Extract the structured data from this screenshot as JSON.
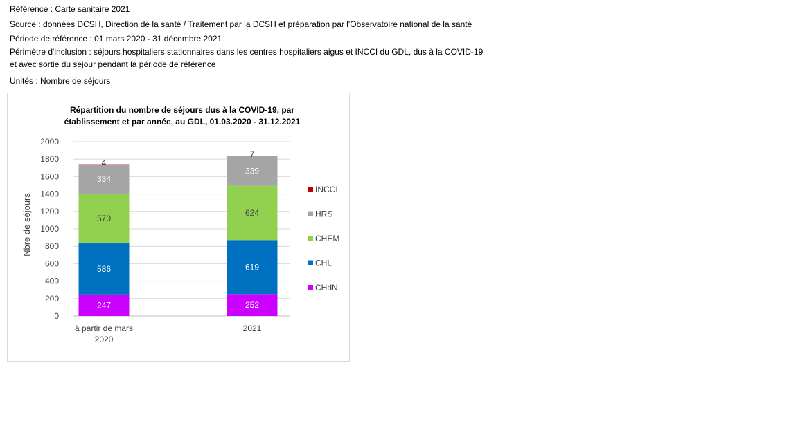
{
  "header": {
    "reference": "Référence : Carte sanitaire 2021",
    "source": "Source : données DCSH, Direction de la santé / Traitement par la DCSH et préparation par l'Observatoire national de la santé",
    "period": "Période de référence : 01 mars 2020 - 31 décembre 2021",
    "scope_line1": "Périmètre d'inclusion : séjours hospitaliers stationnaires dans les centres hospitaliers aigus et INCCI du GDL, dus à la COVID-19",
    "scope_line2": "et avec sortie du séjour pendant la période de référence",
    "units": "Unités : Nombre de séjours"
  },
  "chart_data": {
    "type": "bar",
    "stacked": true,
    "title_line1": "Répartition du nombre de séjours dus à la COVID-19, par",
    "title_line2": "établissement et par année, au GDL, 01.03.2020 - 31.12.2021",
    "ylabel": "Nbre de séjours",
    "xlabel": "",
    "ylim": [
      0,
      2000
    ],
    "yticks": [
      0,
      200,
      400,
      600,
      800,
      1000,
      1200,
      1400,
      1600,
      1800,
      2000
    ],
    "grid": true,
    "legend_position": "right",
    "categories": [
      [
        "à partir de mars",
        "2020"
      ],
      [
        "2021"
      ]
    ],
    "series": [
      {
        "name": "CHdN",
        "color": "#CC00FF",
        "label_color": "#ffffff",
        "values": [
          247,
          252
        ]
      },
      {
        "name": "CHL",
        "color": "#0070C0",
        "label_color": "#ffffff",
        "values": [
          586,
          619
        ]
      },
      {
        "name": "CHEM",
        "color": "#92D050",
        "label_color": "#404040",
        "values": [
          570,
          624
        ]
      },
      {
        "name": "HRS",
        "color": "#A5A5A5",
        "label_color": "#ffffff",
        "values": [
          334,
          339
        ]
      },
      {
        "name": "INCCI",
        "color": "#C00000",
        "label_color": "#404040",
        "values": [
          4,
          7
        ]
      }
    ]
  }
}
